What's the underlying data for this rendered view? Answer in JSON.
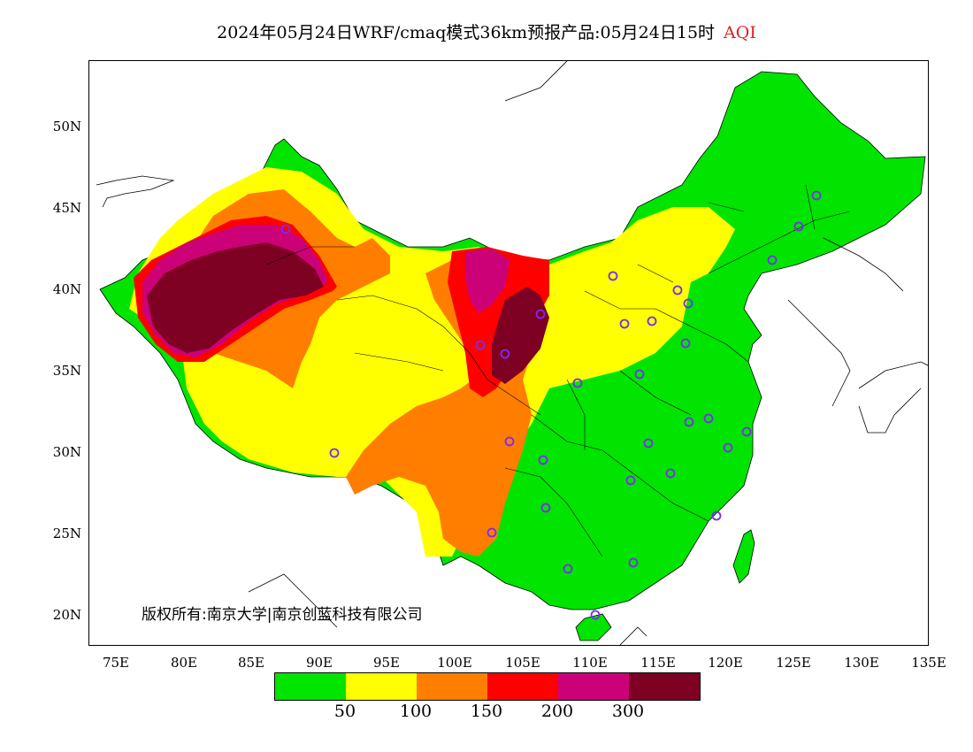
{
  "title": {
    "main": "2024年05月24日WRF/cmaq模式36km预报产品:05月24日15时",
    "variable": "AQI"
  },
  "copyright": "版权所有:南京大学|南京创蓝科技有限公司",
  "latitude_labels": [
    "50N",
    "45N",
    "40N",
    "35N",
    "30N",
    "25N",
    "20N"
  ],
  "longitude_labels": [
    "75E",
    "80E",
    "85E",
    "90E",
    "95E",
    "100E",
    "105E",
    "110E",
    "115E",
    "120E",
    "125E",
    "130E",
    "135E"
  ],
  "legend": {
    "colors": [
      "#00e400",
      "#ffff00",
      "#ff7e00",
      "#ff0000",
      "#cc0077",
      "#7e0023"
    ],
    "thresholds": [
      "50",
      "100",
      "150",
      "200",
      "300"
    ]
  }
}
